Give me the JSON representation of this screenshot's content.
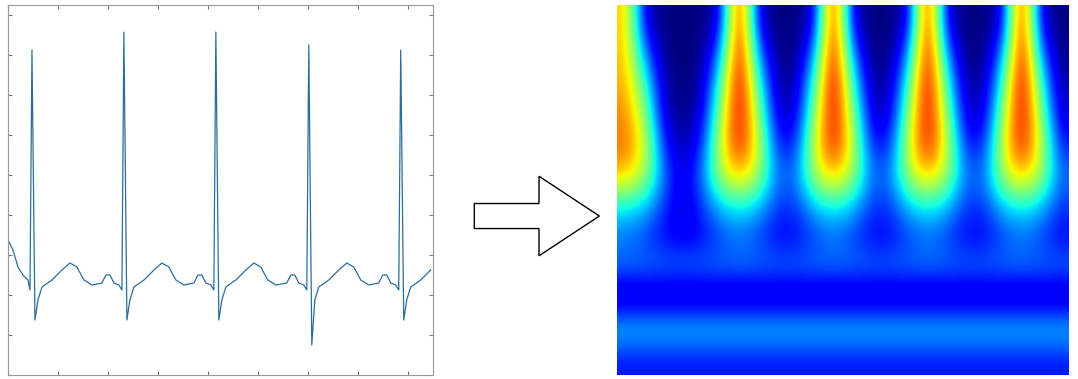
{
  "chart_data": [
    {
      "type": "line",
      "x": [
        0,
        5,
        10,
        15,
        20,
        22,
        24,
        27,
        30,
        34,
        44,
        54,
        62,
        69,
        76,
        84,
        94,
        98,
        102,
        106,
        111,
        114,
        116,
        119,
        122,
        126,
        136,
        146,
        154,
        161,
        168,
        176,
        186,
        190,
        194,
        198,
        203,
        206,
        208,
        211,
        214,
        218,
        228,
        238,
        246,
        253,
        260,
        268,
        279,
        283,
        287,
        291,
        296,
        299,
        301,
        304,
        307,
        311,
        321,
        331,
        339,
        346,
        353,
        361,
        371,
        375,
        379,
        383,
        388,
        391,
        393,
        396,
        399,
        403,
        413,
        423
      ],
      "values": [
        135,
        125,
        108,
        100,
        95,
        85,
        325,
        55,
        75,
        88,
        95,
        105,
        112,
        108,
        95,
        90,
        92,
        100,
        100,
        92,
        90,
        85,
        343,
        55,
        75,
        88,
        95,
        105,
        112,
        108,
        95,
        90,
        92,
        100,
        100,
        92,
        90,
        85,
        343,
        55,
        75,
        88,
        95,
        105,
        112,
        108,
        95,
        90,
        92,
        100,
        100,
        92,
        90,
        85,
        330,
        30,
        75,
        88,
        95,
        105,
        112,
        108,
        95,
        90,
        92,
        100,
        100,
        92,
        90,
        85,
        325,
        55,
        75,
        88,
        95,
        105
      ],
      "color": "#2b6d9a",
      "xlim": [
        0,
        425
      ],
      "ylim": [
        0,
        370
      ],
      "xticks": [
        0,
        50,
        100,
        150,
        200,
        250,
        300,
        350,
        400
      ],
      "yticks": [
        0,
        40,
        80,
        120,
        160,
        200,
        240,
        280,
        320,
        360
      ],
      "tick_labels": false
    },
    {
      "type": "heatmap",
      "cells": [
        [
          0.7,
          0.15,
          0.1,
          0.1,
          0.1,
          0.15,
          0.95,
          0.15,
          0.1,
          0.1,
          0.15,
          0.95,
          0.15,
          0.1,
          0.1,
          0.15,
          0.95,
          0.15,
          0.1,
          0.1,
          0.15,
          0.95,
          0.15,
          0.1
        ],
        [
          0.7,
          0.3,
          0.1,
          0.1,
          0.1,
          0.3,
          0.95,
          0.3,
          0.1,
          0.1,
          0.3,
          0.95,
          0.3,
          0.1,
          0.1,
          0.3,
          0.95,
          0.3,
          0.1,
          0.1,
          0.3,
          0.95,
          0.3,
          0.1
        ],
        [
          0.72,
          0.45,
          0.12,
          0.1,
          0.12,
          0.45,
          0.95,
          0.45,
          0.12,
          0.12,
          0.45,
          0.95,
          0.45,
          0.12,
          0.12,
          0.45,
          0.95,
          0.45,
          0.12,
          0.12,
          0.45,
          0.95,
          0.45,
          0.12
        ],
        [
          0.75,
          0.55,
          0.15,
          0.1,
          0.15,
          0.55,
          0.92,
          0.55,
          0.15,
          0.15,
          0.55,
          0.92,
          0.55,
          0.15,
          0.15,
          0.55,
          0.92,
          0.55,
          0.15,
          0.15,
          0.55,
          0.92,
          0.55,
          0.15
        ],
        [
          0.78,
          0.62,
          0.22,
          0.12,
          0.22,
          0.62,
          0.88,
          0.62,
          0.22,
          0.22,
          0.62,
          0.88,
          0.62,
          0.22,
          0.22,
          0.62,
          0.88,
          0.62,
          0.22,
          0.22,
          0.62,
          0.88,
          0.62,
          0.22
        ],
        [
          0.7,
          0.58,
          0.3,
          0.15,
          0.3,
          0.58,
          0.72,
          0.58,
          0.3,
          0.3,
          0.58,
          0.72,
          0.58,
          0.3,
          0.3,
          0.58,
          0.72,
          0.58,
          0.3,
          0.3,
          0.58,
          0.72,
          0.58,
          0.3
        ],
        [
          0.42,
          0.38,
          0.25,
          0.15,
          0.25,
          0.38,
          0.42,
          0.38,
          0.25,
          0.25,
          0.38,
          0.42,
          0.38,
          0.25,
          0.25,
          0.38,
          0.42,
          0.38,
          0.25,
          0.25,
          0.38,
          0.42,
          0.38,
          0.25
        ],
        [
          0.3,
          0.26,
          0.2,
          0.18,
          0.2,
          0.26,
          0.3,
          0.26,
          0.2,
          0.2,
          0.26,
          0.3,
          0.26,
          0.2,
          0.2,
          0.26,
          0.3,
          0.26,
          0.2,
          0.2,
          0.26,
          0.3,
          0.26,
          0.2
        ],
        [
          0.3,
          0.3,
          0.3,
          0.3,
          0.3,
          0.3,
          0.3,
          0.3,
          0.3,
          0.3,
          0.3,
          0.3,
          0.3,
          0.3,
          0.3,
          0.3,
          0.3,
          0.3,
          0.3,
          0.3,
          0.3,
          0.3,
          0.3,
          0.3
        ],
        [
          0.12,
          0.12,
          0.12,
          0.12,
          0.12,
          0.12,
          0.12,
          0.12,
          0.12,
          0.12,
          0.12,
          0.12,
          0.12,
          0.12,
          0.12,
          0.12,
          0.12,
          0.12,
          0.12,
          0.12,
          0.12,
          0.12,
          0.12,
          0.12
        ],
        [
          0.38,
          0.38,
          0.38,
          0.38,
          0.38,
          0.38,
          0.38,
          0.38,
          0.38,
          0.38,
          0.38,
          0.38,
          0.38,
          0.38,
          0.38,
          0.38,
          0.38,
          0.38,
          0.38,
          0.38,
          0.38,
          0.38,
          0.38,
          0.38
        ],
        [
          0.22,
          0.22,
          0.22,
          0.22,
          0.22,
          0.22,
          0.22,
          0.22,
          0.22,
          0.22,
          0.22,
          0.22,
          0.22,
          0.22,
          0.22,
          0.22,
          0.22,
          0.22,
          0.22,
          0.22,
          0.22,
          0.22,
          0.22,
          0.22
        ]
      ],
      "tick_labels": false
    }
  ]
}
